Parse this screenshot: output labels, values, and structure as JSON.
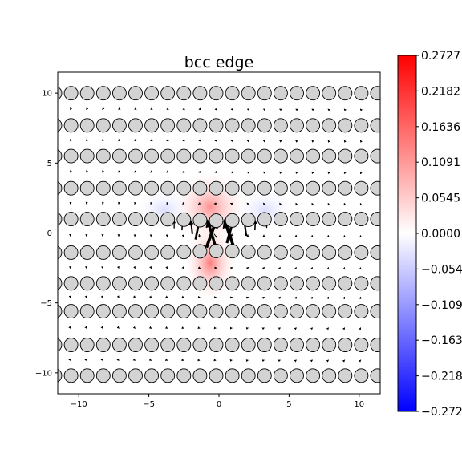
{
  "chart_data": {
    "type": "heatmap",
    "title": "bcc edge",
    "xlabel": "",
    "ylabel": "",
    "xlim": [
      -11.5,
      11.5
    ],
    "ylim": [
      -11.5,
      11.5
    ],
    "x_ticks": [
      -10,
      -5,
      0,
      5,
      10
    ],
    "x_tick_labels": [
      "−10",
      "−5",
      "0",
      "5",
      "10"
    ],
    "y_ticks": [
      -10,
      -5,
      0,
      5,
      10
    ],
    "y_tick_labels": [
      "−10",
      "−5",
      "0",
      "5",
      "10"
    ],
    "grid": false,
    "atom_rows_y": [
      10.0,
      7.7,
      5.5,
      3.2,
      1.0,
      -1.4,
      -3.6,
      -5.6,
      -8.0,
      -10.2
    ],
    "atom_spacing_x": 1.15,
    "atom_color": "#d3d3d3",
    "colormap": "bwr",
    "colorbar": {
      "min": -0.2727,
      "max": 0.2727,
      "ticks": [
        0.2727,
        0.2182,
        0.1636,
        0.1091,
        0.0545,
        0.0,
        -0.0545,
        -0.1091,
        -0.1636,
        -0.2182,
        -0.2727
      ],
      "tick_labels": [
        "0.2727",
        "0.2182",
        "0.1636",
        "0.1091",
        "0.0545",
        "0.0000",
        "−0.0545",
        "−0.1091",
        "−0.1636",
        "−0.2182",
        "−0.2727"
      ],
      "low_color": "#0000ff",
      "mid_color": "#ffffff",
      "high_color": "#ff0000"
    }
  }
}
